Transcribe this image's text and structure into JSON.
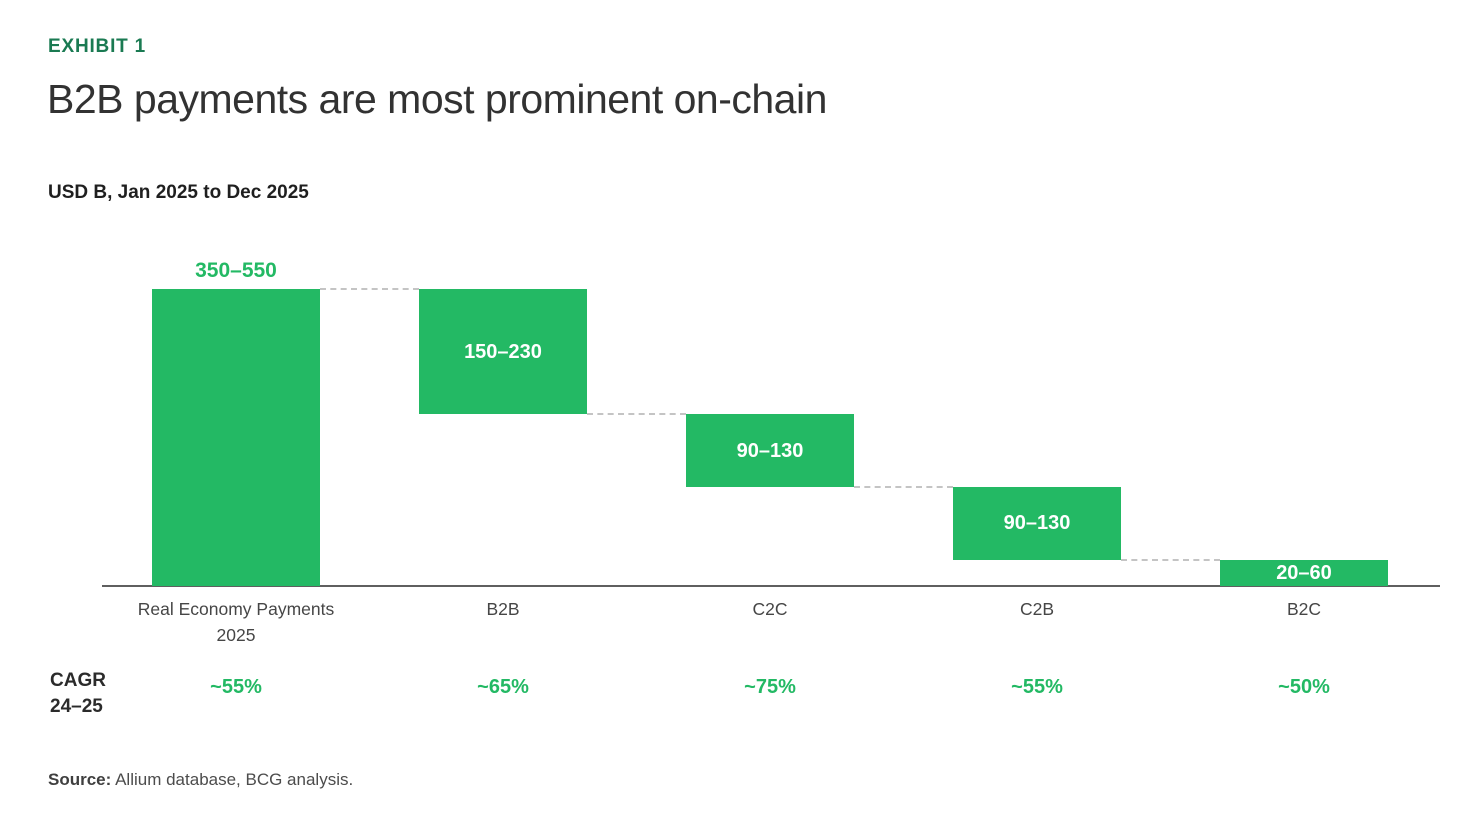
{
  "page": {
    "exhibit_label": "EXHIBIT 1",
    "title": "B2B payments are most prominent on-chain",
    "subtitle": "USD B, Jan 2025 to Dec 2025",
    "source_label": "Source:",
    "source_text": "Allium database, BCG analysis."
  },
  "chart_data": {
    "type": "bar",
    "variant": "waterfall",
    "title": "B2B payments are most prominent on-chain",
    "units": "USD B, Jan 2025 to Dec 2025",
    "xlabel": "",
    "ylabel": "USD B",
    "ylim": [
      0,
      450
    ],
    "grid": false,
    "legend": "none",
    "categories": [
      "Real Economy Payments 2025",
      "B2B",
      "C2C",
      "C2B",
      "B2C"
    ],
    "bars": [
      {
        "category": "Real Economy Payments 2025",
        "label": "350–550",
        "range_low": 350,
        "range_high": 550,
        "mid": 450,
        "cum_start": 0,
        "cum_end": 450,
        "label_position": "above"
      },
      {
        "category": "B2B",
        "label": "150–230",
        "range_low": 150,
        "range_high": 230,
        "mid": 190,
        "cum_start": 260,
        "cum_end": 450,
        "label_position": "inside"
      },
      {
        "category": "C2C",
        "label": "90–130",
        "range_low": 90,
        "range_high": 130,
        "mid": 110,
        "cum_start": 150,
        "cum_end": 260,
        "label_position": "inside"
      },
      {
        "category": "C2B",
        "label": "90–130",
        "range_low": 90,
        "range_high": 130,
        "mid": 110,
        "cum_start": 40,
        "cum_end": 150,
        "label_position": "inside"
      },
      {
        "category": "B2C",
        "label": "20–60",
        "range_low": 20,
        "range_high": 60,
        "mid": 40,
        "cum_start": 0,
        "cum_end": 40,
        "label_position": "inside"
      }
    ],
    "cagr": {
      "row_label_line1": "CAGR",
      "row_label_line2": "24–25",
      "values": [
        "~55%",
        "~65%",
        "~75%",
        "~55%",
        "~50%"
      ]
    },
    "colors": {
      "bar_green": "#23b964",
      "exhibit_green": "#1a7a52",
      "value_label_above": "#23b964",
      "value_label_inside": "#ffffff",
      "axis_line": "#5f5f5f",
      "connector_dash": "#c4c4c4",
      "title_text": "#323232",
      "body_text": "#464646"
    }
  }
}
